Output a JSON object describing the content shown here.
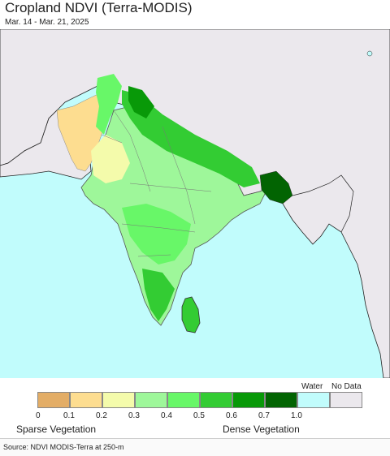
{
  "title": "Cropland NDVI (Terra-MODIS)",
  "subtitle": "Mar. 14 - Mar. 21, 2025",
  "legend": {
    "water_label": "Water",
    "nodata_label": "No Data",
    "classes": [
      {
        "color": "#e3ad66"
      },
      {
        "color": "#fddd90"
      },
      {
        "color": "#f4fbab"
      },
      {
        "color": "#9ef79a"
      },
      {
        "color": "#68f768"
      },
      {
        "color": "#33cc33"
      },
      {
        "color": "#089908"
      },
      {
        "color": "#026402"
      },
      {
        "color": "#c1fcfc"
      },
      {
        "color": "#ebe8ed"
      }
    ],
    "ticks": [
      "0",
      "0.1",
      "0.2",
      "0.3",
      "0.4",
      "0.5",
      "0.6",
      "0.7",
      "1.0"
    ],
    "sparse_label": "Sparse Vegetation",
    "dense_label": "Dense Vegetation"
  },
  "colors": {
    "ocean": "#c1fcfc",
    "land_nodata": "#ebe8ed",
    "border": "#222222"
  },
  "source": "Source: NDVI MODIS-Terra at 250-m"
}
